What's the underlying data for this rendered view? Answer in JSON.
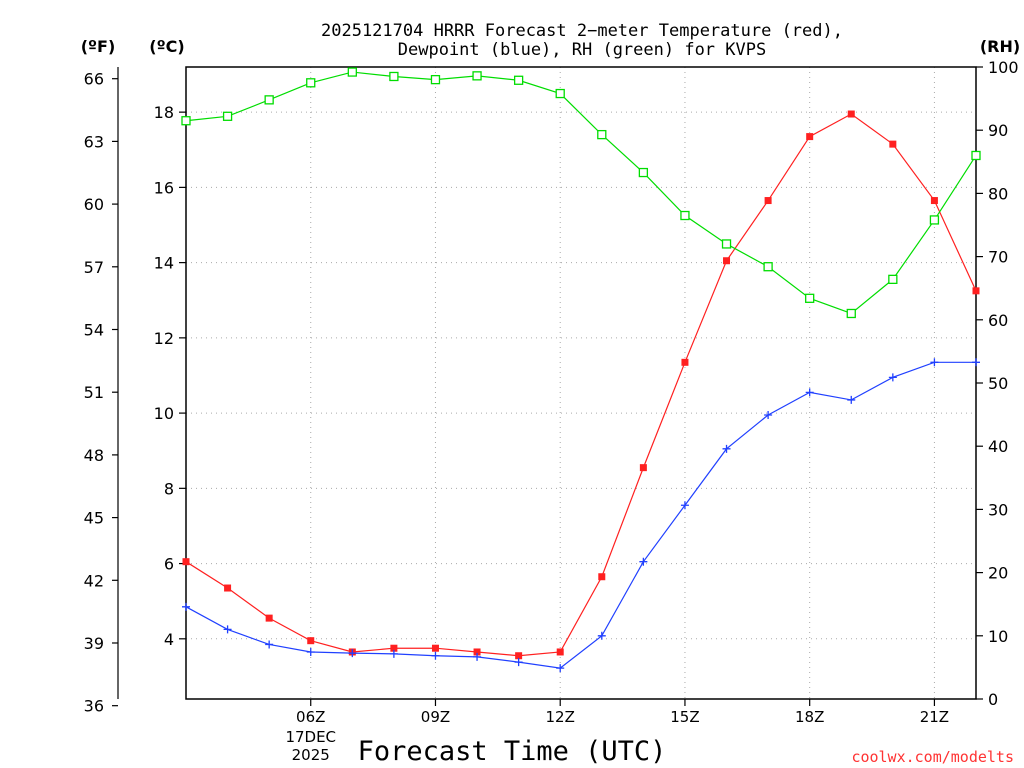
{
  "chart_data": {
    "type": "line",
    "title_line1": "2025121704 HRRR Forecast 2−meter Temperature (red),",
    "title_line2": "Dewpoint (blue), RH (green) for KVPS",
    "xlabel": "Forecast Time (UTC)",
    "credit": "coolwx.com/modelts",
    "left_outer_unit": "(ºF)",
    "left_inner_unit": "(ºC)",
    "right_unit": "(RH)",
    "x": [
      3,
      4,
      5,
      6,
      7,
      8,
      9,
      10,
      11,
      12,
      13,
      14,
      15,
      16,
      17,
      18,
      19,
      20,
      21,
      22
    ],
    "xlim": [
      3,
      22
    ],
    "x_ticks": [
      {
        "x": 6,
        "label": "06Z"
      },
      {
        "x": 9,
        "label": "09Z"
      },
      {
        "x": 12,
        "label": "12Z"
      },
      {
        "x": 15,
        "label": "15Z"
      },
      {
        "x": 18,
        "label": "18Z"
      },
      {
        "x": 21,
        "label": "21Z"
      }
    ],
    "date_label_line1": "17DEC",
    "date_label_line2": "2025",
    "date_label_x": 6,
    "celsius_axis": {
      "ylim": [
        2.4,
        19.2
      ],
      "ticks": [
        4,
        6,
        8,
        10,
        12,
        14,
        16,
        18
      ]
    },
    "fahrenheit_axis": {
      "ylim": [
        36.32,
        66.56
      ],
      "ticks": [
        36,
        39,
        42,
        45,
        48,
        51,
        54,
        57,
        60,
        63,
        66
      ]
    },
    "rh_axis": {
      "ylim": [
        0,
        100
      ],
      "ticks": [
        0,
        10,
        20,
        30,
        40,
        50,
        60,
        70,
        80,
        90,
        100
      ]
    },
    "gridlines": true,
    "series": [
      {
        "name": "Temperature",
        "axis": "celsius",
        "color": "#ff2020",
        "marker": "filled-square",
        "values": [
          6.05,
          5.35,
          4.55,
          3.95,
          3.65,
          3.75,
          3.75,
          3.65,
          3.55,
          3.65,
          5.65,
          8.55,
          11.35,
          14.05,
          15.65,
          17.35,
          17.95,
          17.15,
          15.65,
          13.25
        ]
      },
      {
        "name": "Dewpoint",
        "axis": "celsius",
        "color": "#2040ff",
        "marker": "plus",
        "values": [
          4.85,
          4.25,
          3.85,
          3.65,
          3.62,
          3.6,
          3.55,
          3.52,
          3.38,
          3.22,
          4.08,
          6.05,
          7.55,
          9.05,
          9.95,
          10.55,
          10.35,
          10.95,
          11.35,
          11.35
        ]
      },
      {
        "name": "RH",
        "axis": "rh",
        "color": "#00dd00",
        "marker": "open-square",
        "values": [
          91.5,
          92.2,
          94.8,
          97.5,
          99.2,
          98.5,
          98.0,
          98.6,
          97.9,
          95.8,
          89.3,
          83.3,
          76.5,
          72.0,
          68.4,
          63.4,
          61.0,
          66.4,
          75.8,
          86.0
        ]
      }
    ]
  }
}
